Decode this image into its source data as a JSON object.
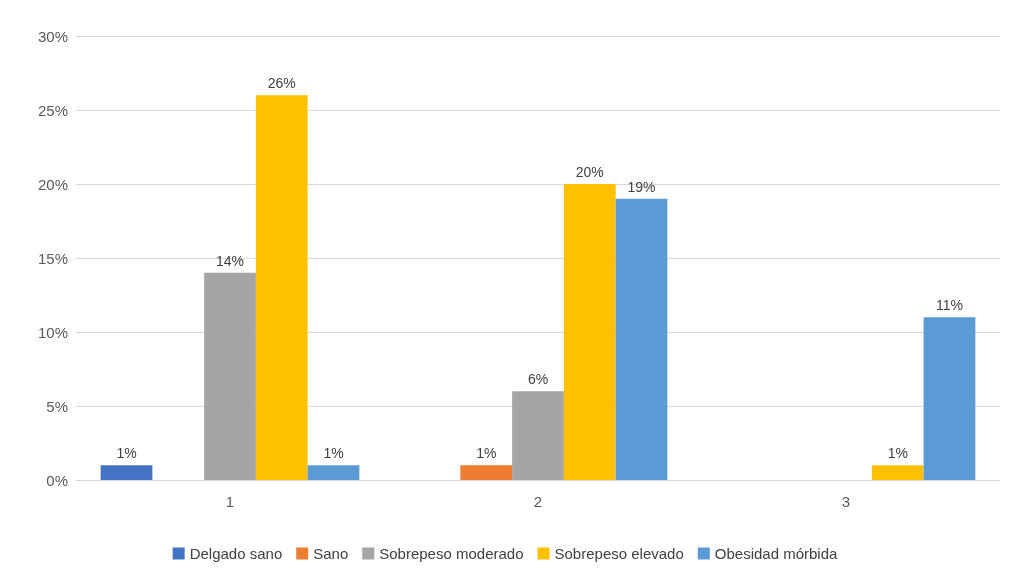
{
  "chart_data": {
    "type": "bar",
    "categories": [
      "1",
      "2",
      "3"
    ],
    "series": [
      {
        "name": "Delgado sano",
        "color": "#4472c4",
        "values": [
          1,
          null,
          null
        ],
        "value_labels": [
          "1%",
          null,
          null
        ]
      },
      {
        "name": "Sano",
        "color": "#ed7d31",
        "values": [
          null,
          1,
          null
        ],
        "value_labels": [
          null,
          "1%",
          null
        ]
      },
      {
        "name": "Sobrepeso moderado",
        "color": "#a5a5a5",
        "values": [
          14,
          6,
          null
        ],
        "value_labels": [
          "14%",
          "6%",
          null
        ]
      },
      {
        "name": "Sobrepeso elevado",
        "color": "#ffc000",
        "values": [
          26,
          20,
          1
        ],
        "value_labels": [
          "26%",
          "20%",
          "1%"
        ]
      },
      {
        "name": "Obesidad mórbida",
        "color": "#5b9bd5",
        "values": [
          1,
          19,
          11
        ],
        "value_labels": [
          "1%",
          "19%",
          "11%"
        ]
      }
    ],
    "ylim": [
      0,
      30
    ],
    "yticks": [
      {
        "value": 0,
        "label": "0%"
      },
      {
        "value": 5,
        "label": "5%"
      },
      {
        "value": 10,
        "label": "10%"
      },
      {
        "value": 15,
        "label": "15%"
      },
      {
        "value": 20,
        "label": "20%"
      },
      {
        "value": 25,
        "label": "25%"
      },
      {
        "value": 30,
        "label": "30%"
      }
    ],
    "grid": "y",
    "legend": "bottom"
  }
}
